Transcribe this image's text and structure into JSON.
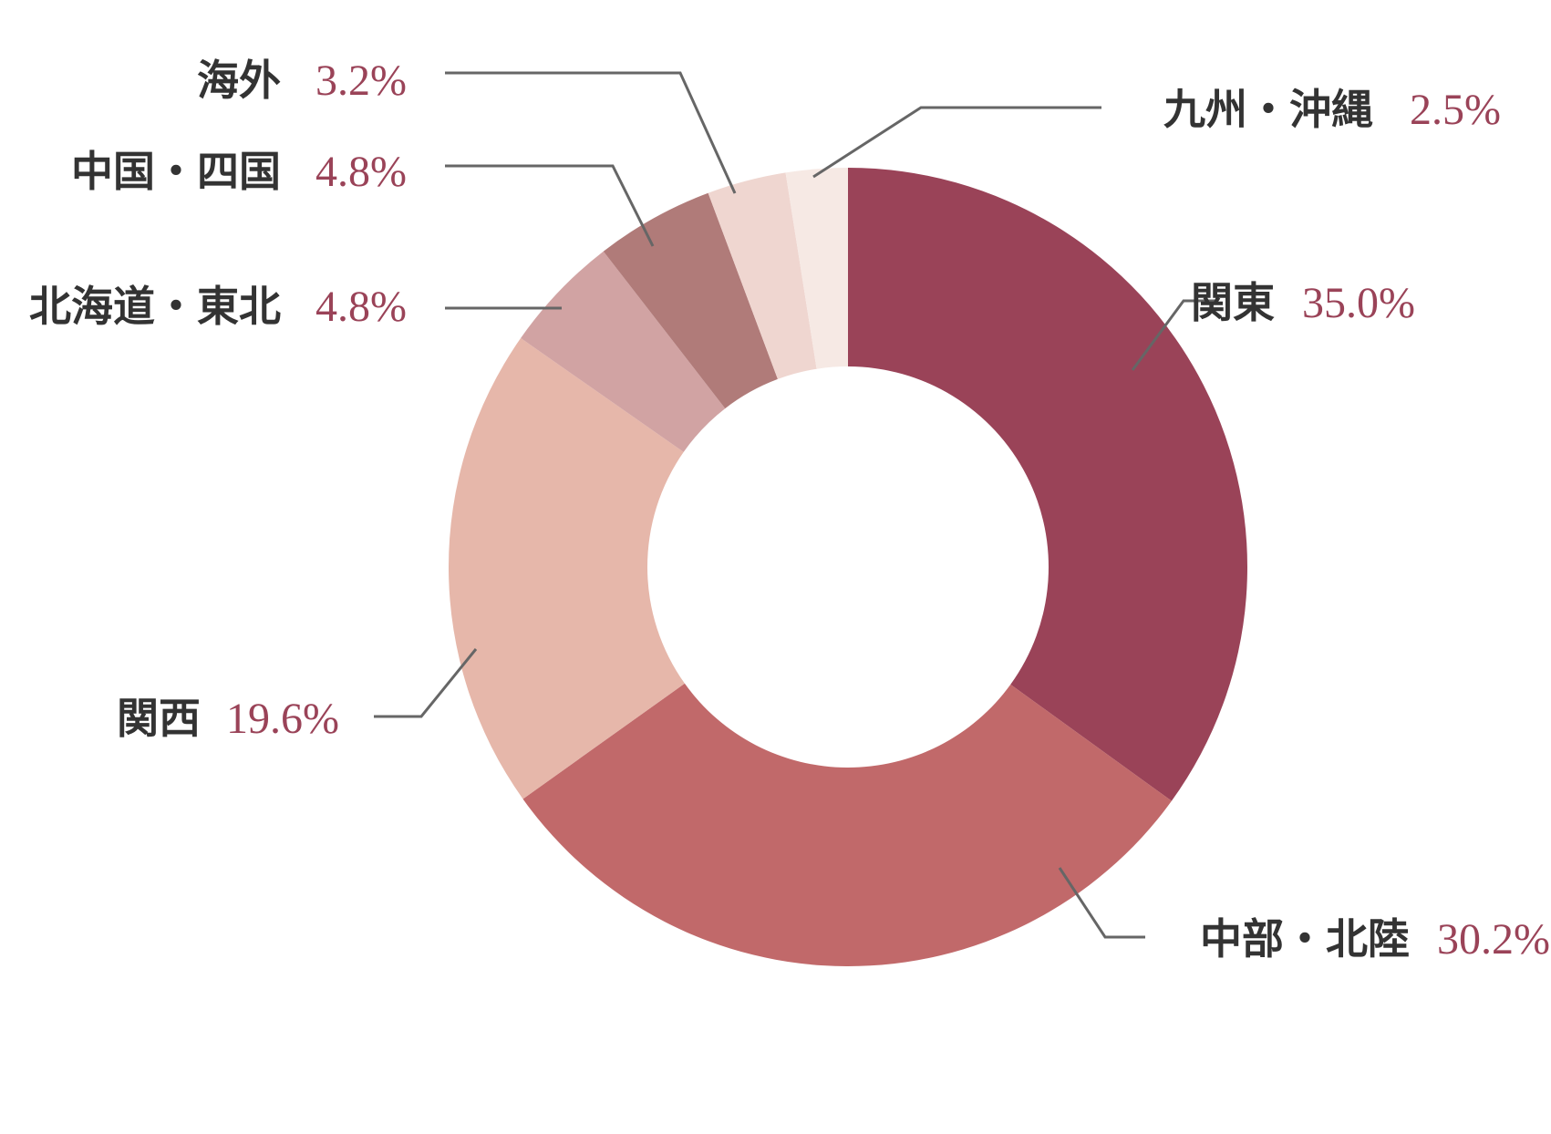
{
  "chart_data": {
    "type": "pie",
    "variant": "donut",
    "categories": [
      "関東",
      "中部・北陸",
      "関西",
      "北海道・東北",
      "中国・四国",
      "海外",
      "九州・沖縄"
    ],
    "values": [
      35.0,
      30.2,
      19.6,
      4.8,
      4.8,
      3.2,
      2.5
    ],
    "value_labels": [
      "35.0%",
      "30.2%",
      "19.6%",
      "4.8%",
      "4.8%",
      "3.2%",
      "2.5%"
    ],
    "colors": [
      "#9a4358",
      "#c1696a",
      "#e6b7aa",
      "#d1a3a3",
      "#b07b79",
      "#efd6d0",
      "#f6e9e4"
    ],
    "label_color": "#333333",
    "value_color": "#9a4358",
    "leader_line_color": "#666666",
    "start_angle": "12 o'clock",
    "direction": "clockwise",
    "legend": "none"
  }
}
